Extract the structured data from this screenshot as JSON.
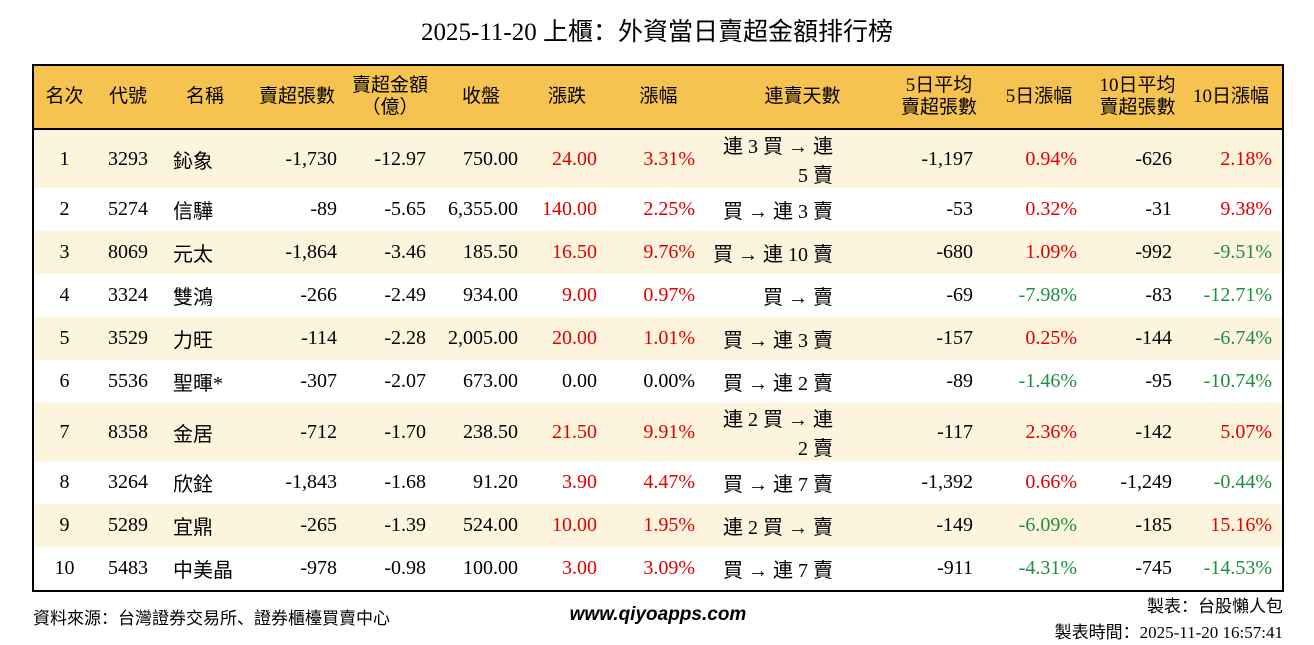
{
  "title": "2025-11-20 上櫃：外資當日賣超金額排行榜",
  "colors": {
    "up_red": "#e00000",
    "down_green": "#1e8e3e",
    "neutral": "#000000",
    "header_bg": "#f6c351",
    "row_alt_bg": "#fdf4de",
    "border": "#000000"
  },
  "chart_data": {
    "type": "table",
    "title": "2025-11-20 上櫃：外資當日賣超金額排行榜",
    "columns": [
      "名次",
      "代號",
      "名稱",
      "賣超張數",
      "賣超金額\n（億）",
      "收盤",
      "漲跌",
      "漲幅",
      "連賣天數",
      "5日平均\n賣超張數",
      "5日漲幅",
      "10日平均\n賣超張數",
      "10日漲幅"
    ],
    "rows": [
      [
        "1",
        "3293",
        "鈊象",
        "-1,730",
        "-12.97",
        "750.00",
        "24.00",
        "3.31%",
        "連 3 買 → 連 5 賣",
        "-1,197",
        "0.94%",
        "-626",
        "2.18%"
      ],
      [
        "2",
        "5274",
        "信驊",
        "-89",
        "-5.65",
        "6,355.00",
        "140.00",
        "2.25%",
        "買 → 連 3 賣",
        "-53",
        "0.32%",
        "-31",
        "9.38%"
      ],
      [
        "3",
        "8069",
        "元太",
        "-1,864",
        "-3.46",
        "185.50",
        "16.50",
        "9.76%",
        "買 → 連 10 賣",
        "-680",
        "1.09%",
        "-992",
        "-9.51%"
      ],
      [
        "4",
        "3324",
        "雙鴻",
        "-266",
        "-2.49",
        "934.00",
        "9.00",
        "0.97%",
        "買 → 賣",
        "-69",
        "-7.98%",
        "-83",
        "-12.71%"
      ],
      [
        "5",
        "3529",
        "力旺",
        "-114",
        "-2.28",
        "2,005.00",
        "20.00",
        "1.01%",
        "買 → 連 3 賣",
        "-157",
        "0.25%",
        "-144",
        "-6.74%"
      ],
      [
        "6",
        "5536",
        "聖暉*",
        "-307",
        "-2.07",
        "673.00",
        "0.00",
        "0.00%",
        "買 → 連 2 賣",
        "-89",
        "-1.46%",
        "-95",
        "-10.74%"
      ],
      [
        "7",
        "8358",
        "金居",
        "-712",
        "-1.70",
        "238.50",
        "21.50",
        "9.91%",
        "連 2 買 → 連 2 賣",
        "-117",
        "2.36%",
        "-142",
        "5.07%"
      ],
      [
        "8",
        "3264",
        "欣銓",
        "-1,843",
        "-1.68",
        "91.20",
        "3.90",
        "4.47%",
        "買 → 連 7 賣",
        "-1,392",
        "0.66%",
        "-1,249",
        "-0.44%"
      ],
      [
        "9",
        "5289",
        "宜鼎",
        "-265",
        "-1.39",
        "524.00",
        "10.00",
        "1.95%",
        "連 2 買 → 賣",
        "-149",
        "-6.09%",
        "-185",
        "15.16%"
      ],
      [
        "10",
        "5483",
        "中美晶",
        "-978",
        "-0.98",
        "100.00",
        "3.00",
        "3.09%",
        "買 → 連 7 賣",
        "-911",
        "-4.31%",
        "-745",
        "-14.53%"
      ]
    ]
  },
  "footer": {
    "source": "資料來源：台灣證券交易所、證券櫃檯買賣中心",
    "website": "www.qiyoapps.com",
    "author": "製表：台股懶人包",
    "timestamp": "製表時間：2025-11-20 16:57:41"
  }
}
